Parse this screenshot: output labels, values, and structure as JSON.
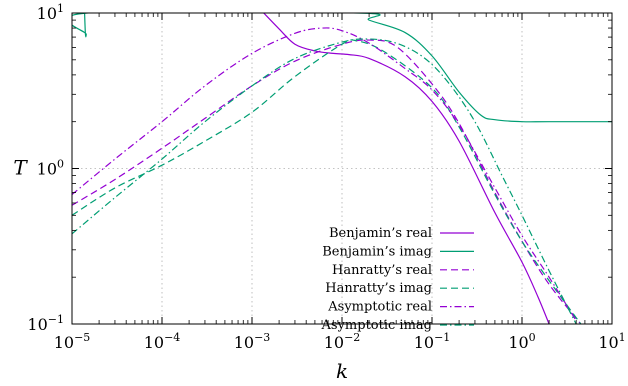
{
  "chart_data": {
    "type": "line",
    "xlabel": "k",
    "ylabel": "T",
    "x_scale": "log",
    "y_scale": "log",
    "xlim": [
      1e-05,
      10
    ],
    "ylim": [
      0.1,
      10
    ],
    "grid": true,
    "legend_position": "bottom-center",
    "x_ticks": [
      {
        "value": 1e-05,
        "base": "10",
        "exp": "−5"
      },
      {
        "value": 0.0001,
        "base": "10",
        "exp": "−4"
      },
      {
        "value": 0.001,
        "base": "10",
        "exp": "−3"
      },
      {
        "value": 0.01,
        "base": "10",
        "exp": "−2"
      },
      {
        "value": 0.1,
        "base": "10",
        "exp": "−1"
      },
      {
        "value": 1,
        "base": "10",
        "exp": "0"
      },
      {
        "value": 10,
        "base": "10",
        "exp": "1"
      }
    ],
    "y_ticks": [
      {
        "value": 0.1,
        "base": "10",
        "exp": "−1"
      },
      {
        "value": 1,
        "base": "10",
        "exp": "0"
      },
      {
        "value": 10,
        "base": "10",
        "exp": "1"
      }
    ],
    "series": [
      {
        "name": "Benjamin's real",
        "color": "#9400d3",
        "dash": "solid",
        "x": [
          0.00135,
          0.002,
          0.003,
          0.005,
          0.008,
          0.012,
          0.02,
          0.05,
          0.1,
          0.2,
          0.5,
          1.0,
          1.5,
          2.0
        ],
        "y": [
          10,
          7.9,
          6.3,
          5.7,
          5.5,
          5.4,
          5.1,
          3.9,
          2.7,
          1.5,
          0.52,
          0.25,
          0.15,
          0.1
        ]
      },
      {
        "name": "Benjamin's imag",
        "color": "#009e73",
        "dash": "solid",
        "x": [
          1.38e-05,
          1.41e-05,
          1.44e-05,
          1.47e-05,
          0.015,
          0.02,
          0.05,
          0.1,
          0.2,
          0.35,
          0.5,
          1.0,
          2.0,
          10
        ],
        "y": [
          10,
          7.3,
          7.3,
          10,
          10,
          9.0,
          7.5,
          5.3,
          3.1,
          2.2,
          2.06,
          2.0,
          2.0,
          2.0
        ]
      },
      {
        "name": "Hanratty's real",
        "color": "#9400d3",
        "dash": "dashed",
        "x": [
          1e-05,
          3e-05,
          0.0001,
          0.0003,
          0.001,
          0.003,
          0.01,
          0.02,
          0.04,
          0.1,
          0.2,
          0.5,
          1.0,
          2.0,
          4.5
        ],
        "y": [
          0.58,
          0.85,
          1.35,
          2.1,
          3.4,
          4.9,
          6.3,
          6.7,
          6.1,
          3.5,
          1.95,
          0.7,
          0.34,
          0.18,
          0.1
        ]
      },
      {
        "name": "Hanratty's imag",
        "color": "#009e73",
        "dash": "dashed",
        "x": [
          1e-05,
          3e-05,
          0.0001,
          0.0003,
          0.001,
          0.003,
          0.01,
          0.015,
          0.03,
          0.1,
          0.2,
          0.5,
          1.0,
          2.0,
          4.5
        ],
        "y": [
          0.5,
          0.75,
          1.05,
          1.5,
          2.3,
          3.9,
          6.3,
          6.6,
          5.6,
          3.3,
          1.85,
          0.68,
          0.34,
          0.19,
          0.1
        ]
      },
      {
        "name": "Asymptotic real",
        "color": "#9400d3",
        "dash": "dashdot",
        "x": [
          1e-05,
          3e-05,
          0.0001,
          0.0003,
          0.001,
          0.003,
          0.006,
          0.01,
          0.02,
          0.05,
          0.1,
          0.2,
          0.5,
          1.0,
          2.0,
          4.0
        ],
        "y": [
          0.68,
          1.15,
          2.0,
          3.4,
          5.5,
          7.4,
          8.0,
          7.7,
          6.4,
          4.4,
          3.2,
          1.9,
          0.75,
          0.37,
          0.2,
          0.105
        ]
      },
      {
        "name": "Asymptotic imag",
        "color": "#009e73",
        "dash": "dashdot",
        "x": [
          1e-05,
          3e-05,
          0.0001,
          0.0003,
          0.001,
          0.003,
          0.01,
          0.02,
          0.04,
          0.08,
          0.15,
          0.3,
          0.6,
          1.0,
          2.0,
          4.0
        ],
        "y": [
          0.38,
          0.65,
          1.15,
          2.0,
          3.4,
          5.1,
          6.5,
          6.8,
          6.4,
          5.2,
          3.6,
          2.0,
          0.9,
          0.5,
          0.22,
          0.1
        ]
      }
    ]
  }
}
